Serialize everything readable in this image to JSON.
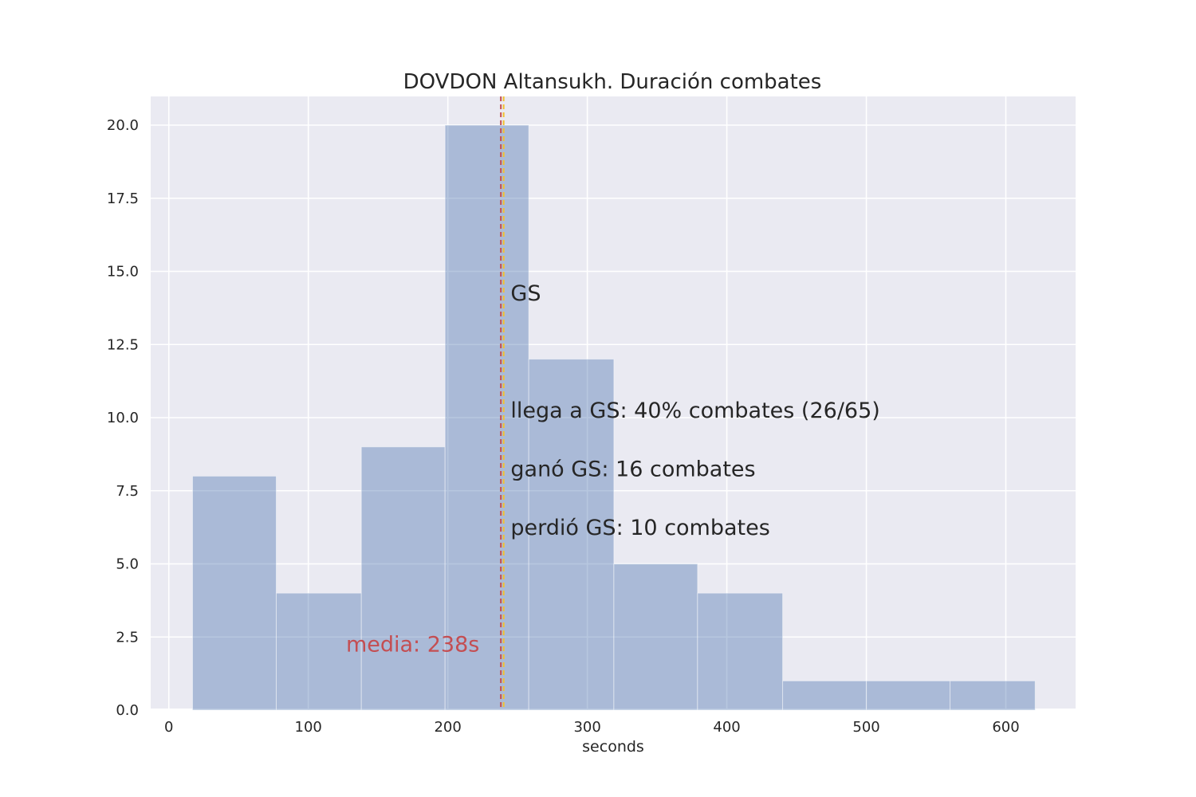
{
  "chart_data": {
    "type": "bar",
    "title": "DOVDON Altansukh. Duración combates",
    "xlabel": "seconds",
    "ylabel": "",
    "xlim": [
      -13,
      650
    ],
    "ylim": [
      0,
      21
    ],
    "xticks": [
      0,
      100,
      200,
      300,
      400,
      500,
      600
    ],
    "xtick_labels": [
      "0",
      "100",
      "200",
      "300",
      "400",
      "500",
      "600"
    ],
    "yticks": [
      0,
      2.5,
      5,
      7.5,
      10,
      12.5,
      15,
      17.5,
      20
    ],
    "ytick_labels": [
      "0.0",
      "2.5",
      "5.0",
      "7.5",
      "10.0",
      "12.5",
      "15.0",
      "17.5",
      "20.0"
    ],
    "bins": [
      {
        "x0": 17,
        "x1": 77,
        "count": 8
      },
      {
        "x0": 77,
        "x1": 138,
        "count": 4
      },
      {
        "x0": 138,
        "x1": 198,
        "count": 9
      },
      {
        "x0": 198,
        "x1": 258,
        "count": 20
      },
      {
        "x0": 258,
        "x1": 319,
        "count": 12
      },
      {
        "x0": 319,
        "x1": 379,
        "count": 5
      },
      {
        "x0": 379,
        "x1": 440,
        "count": 4
      },
      {
        "x0": 440,
        "x1": 500,
        "count": 1
      },
      {
        "x0": 500,
        "x1": 560,
        "count": 1
      },
      {
        "x0": 560,
        "x1": 621,
        "count": 1
      }
    ],
    "mean": {
      "value": 238,
      "label": "media: 238s",
      "color": "#c44e52"
    },
    "golden_score": {
      "value": 240,
      "label": "GS",
      "color": "#f2c12e"
    },
    "annotations": [
      {
        "text": "llega a GS: 40% combates (26/65)",
        "x": 245,
        "y": 10
      },
      {
        "text": "ganó GS: 16 combates",
        "x": 245,
        "y": 8
      },
      {
        "text": "perdió GS: 10 combates",
        "x": 245,
        "y": 6
      }
    ],
    "gs_label_pos": {
      "x": 245,
      "y": 14
    },
    "mean_label_pos": {
      "x": 127,
      "y": 2
    },
    "grid": true,
    "colors": {
      "background": "#eaeaf2",
      "bar": "#4c72b0",
      "grid": "#ffffff",
      "text": "#262626"
    }
  }
}
